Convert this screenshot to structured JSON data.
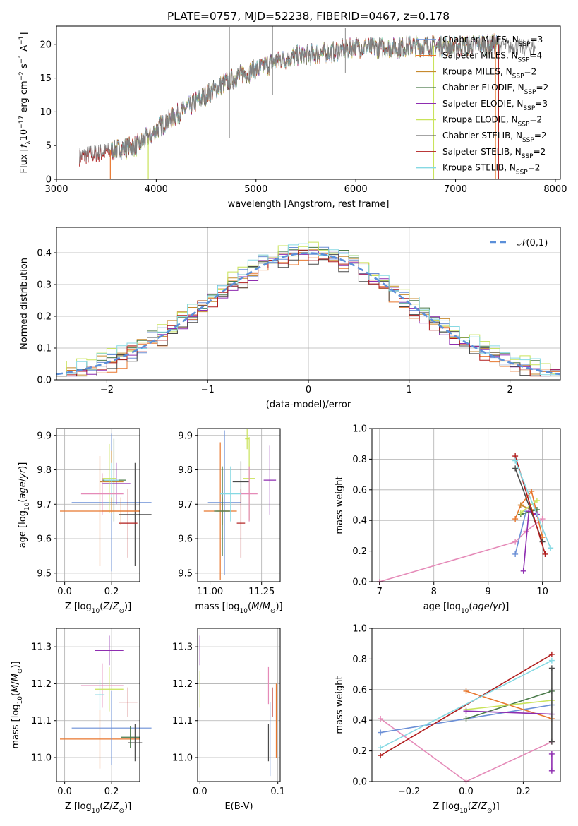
{
  "figure_title": "PLATE=0757, MJD=52238, FIBERID=0467, z=0.178",
  "colors": {
    "Chabrier MILES": "#6b8fd6",
    "Salpeter MILES": "#e8772e",
    "Kroupa MILES": "#c78a2e",
    "Chabrier ELODIE": "#4a7a4a",
    "Salpeter ELODIE": "#8e2db0",
    "Kroupa ELODIE": "#c9e35a",
    "Chabrier STELIB": "#4a4a4a",
    "Salpeter STELIB": "#b01c1c",
    "Kroupa STELIB": "#86d9e3",
    "extra pink": "#e58ab8",
    "gaussian": "#5b8fd9",
    "spectrum": "#808080"
  },
  "chart_data": [
    {
      "id": "spectrum",
      "type": "line",
      "title": "PLATE=0757, MJD=52238, FIBERID=0467, z=0.178",
      "xlabel": "wavelength [Angstrom, rest frame]",
      "ylabel": "Flux [f_λ 10^-17 erg cm^-2 s^-1 A^-1]",
      "xlim": [
        3000,
        8050
      ],
      "ylim": [
        0,
        22.7
      ],
      "xticks": [
        "3000",
        "4000",
        "5000",
        "6000",
        "7000",
        "8000"
      ],
      "yticks": [
        "0",
        "5",
        "10",
        "15",
        "20"
      ],
      "grid": false,
      "legend_position": "right",
      "legend": [
        {
          "name": "Chabrier MILES, N_SSP=3",
          "base": "Chabrier MILES, N",
          "sub": "SSP",
          "tail": "=3",
          "color": "#6b8fd6"
        },
        {
          "name": "Salpeter MILES, N_SSP=4",
          "base": "Salpeter MILES, N",
          "sub": "SSP",
          "tail": "=4",
          "color": "#e8772e"
        },
        {
          "name": "Kroupa MILES, N_SSP=2",
          "base": "Kroupa MILES, N",
          "sub": "SSP",
          "tail": "=2",
          "color": "#c78a2e"
        },
        {
          "name": "Chabrier ELODIE, N_SSP=2",
          "base": "Chabrier ELODIE, N",
          "sub": "SSP",
          "tail": "=2",
          "color": "#4a7a4a"
        },
        {
          "name": "Salpeter ELODIE, N_SSP=3",
          "base": "Salpeter ELODIE, N",
          "sub": "SSP",
          "tail": "=3",
          "color": "#8e2db0"
        },
        {
          "name": "Kroupa ELODIE, N_SSP=2",
          "base": "Kroupa ELODIE, N",
          "sub": "SSP",
          "tail": "=2",
          "color": "#c9e35a"
        },
        {
          "name": "Chabrier STELIB, N_SSP=2",
          "base": "Chabrier STELIB, N",
          "sub": "SSP",
          "tail": "=2",
          "color": "#4a4a4a"
        },
        {
          "name": "Salpeter STELIB, N_SSP=2",
          "base": "Salpeter STELIB, N",
          "sub": "SSP",
          "tail": "=2",
          "color": "#b01c1c"
        },
        {
          "name": "Kroupa STELIB, N_SSP=2",
          "base": "Kroupa STELIB, N",
          "sub": "SSP",
          "tail": "=2",
          "color": "#86d9e3"
        }
      ],
      "continuum": [
        [
          3230,
          3.5
        ],
        [
          3400,
          4.0
        ],
        [
          3600,
          4.4
        ],
        [
          3800,
          5.0
        ],
        [
          3950,
          6.5
        ],
        [
          4050,
          8.0
        ],
        [
          4200,
          9.5
        ],
        [
          4400,
          11.5
        ],
        [
          4600,
          13.5
        ],
        [
          4800,
          15.2
        ],
        [
          5000,
          16.2
        ],
        [
          5200,
          17.5
        ],
        [
          5400,
          18.3
        ],
        [
          5600,
          18.6
        ],
        [
          5800,
          19.0
        ],
        [
          6000,
          19.6
        ],
        [
          6200,
          19.5
        ],
        [
          6400,
          19.5
        ],
        [
          6600,
          19.8
        ],
        [
          6800,
          19.8
        ],
        [
          7000,
          19.6
        ],
        [
          7200,
          19.9
        ],
        [
          7400,
          20.0
        ],
        [
          7600,
          19.6
        ],
        [
          7700,
          19.5
        ],
        [
          7800,
          19.6
        ]
      ],
      "spectrum_start": 3230,
      "spectrum_end": 7800,
      "model_range": [
        3540,
        7430
      ],
      "features": [
        {
          "x": 4734,
          "y_low": 6.1,
          "y_high": 22.6
        },
        {
          "x": 5166,
          "y_low": 12.5,
          "y_high": 22.7
        },
        {
          "x": 5895,
          "y_low": 15.8,
          "y_high": 22.4
        }
      ],
      "dropouts": [
        {
          "x": 3540,
          "color": "#e8772e"
        },
        {
          "x": 3920,
          "color": "#c9e35a"
        },
        {
          "x": 6780,
          "color": "#c9e35a"
        },
        {
          "x": 7400,
          "color": "#e8772e"
        },
        {
          "x": 7430,
          "color": "#b01c1c"
        }
      ]
    },
    {
      "id": "residual-histogram",
      "type": "step",
      "xlabel": "(data-model)/error",
      "ylabel": "Normed distribution",
      "xlim": [
        -2.5,
        2.5
      ],
      "ylim": [
        0,
        0.48
      ],
      "xticks": [
        "−2",
        "−1",
        "0",
        "1",
        "2"
      ],
      "yticks": [
        "0.0",
        "0.1",
        "0.2",
        "0.3",
        "0.4"
      ],
      "grid": true,
      "legend_position": "top-right",
      "legend": [
        {
          "name": "N(0,1)",
          "label": "𝒩(0,1)",
          "color": "#5b8fd9",
          "style": "dashed"
        }
      ],
      "gaussian": {
        "mean": 0,
        "sigma": 1
      },
      "bin_width": 0.1,
      "series": [
        {
          "name": "Chabrier MILES",
          "color": "#6b8fd6",
          "offset": 0.005
        },
        {
          "name": "Salpeter MILES",
          "color": "#e8772e",
          "offset": -0.012
        },
        {
          "name": "Kroupa MILES",
          "color": "#c78a2e",
          "offset": 0.008
        },
        {
          "name": "Chabrier ELODIE",
          "color": "#4a7a4a",
          "offset": 0.01
        },
        {
          "name": "Salpeter ELODIE",
          "color": "#8e2db0",
          "offset": -0.006
        },
        {
          "name": "Kroupa ELODIE",
          "color": "#c9e35a",
          "offset": 0.015
        },
        {
          "name": "Chabrier STELIB",
          "color": "#4a4a4a",
          "offset": -0.01
        },
        {
          "name": "Salpeter STELIB",
          "color": "#b01c1c",
          "offset": -0.004
        },
        {
          "name": "Kroupa STELIB",
          "color": "#86d9e3",
          "offset": 0.012
        }
      ]
    },
    {
      "id": "age-vs-Z",
      "type": "scatter-errorbar",
      "xlabel": "Z [log10(Z/Z⊙)]",
      "ylabel": "age [log10(age/yr)]",
      "xlim": [
        -0.035,
        0.32
      ],
      "ylim": [
        9.475,
        9.92
      ],
      "xticks": [
        "0.0",
        "0.2"
      ],
      "yticks": [
        "9.5",
        "9.6",
        "9.7",
        "9.8",
        "9.9"
      ],
      "grid": true,
      "points": [
        {
          "color": "#e8772e",
          "x": 0.15,
          "xerr": 0.17,
          "y": 9.68,
          "yerr": 0.16
        },
        {
          "color": "#6b8fd6",
          "x": 0.2,
          "xerr": 0.17,
          "y": 9.705,
          "yerr": 0.2
        },
        {
          "color": "#c78a2e",
          "x": 0.2,
          "xerr": 0.05,
          "y": 9.765,
          "yerr": 0.09
        },
        {
          "color": "#4a7a4a",
          "x": 0.21,
          "xerr": 0.05,
          "y": 9.77,
          "yerr": 0.12
        },
        {
          "color": "#8e2db0",
          "x": 0.22,
          "xerr": 0.06,
          "y": 9.76,
          "yerr": 0.06
        },
        {
          "color": "#c9e35a",
          "x": 0.19,
          "xerr": 0.03,
          "y": 9.775,
          "yerr": 0.1
        },
        {
          "color": "#4a4a4a",
          "x": 0.3,
          "xerr": 0.07,
          "y": 9.67,
          "yerr": 0.15
        },
        {
          "color": "#b01c1c",
          "x": 0.27,
          "xerr": 0.04,
          "y": 9.645,
          "yerr": 0.1
        },
        {
          "color": "#86d9e3",
          "x": 0.2,
          "xerr": 0.03,
          "y": 9.77,
          "yerr": 0.05
        },
        {
          "color": "#e58ab8",
          "x": 0.16,
          "xerr": 0.09,
          "y": 9.73,
          "yerr": 0.06
        },
        {
          "color": "#e8772e",
          "x": 0.24,
          "xerr": 0.08,
          "y": 9.68,
          "yerr": 0.04
        }
      ]
    },
    {
      "id": "age-vs-mass",
      "type": "scatter-errorbar",
      "xlabel": "mass [log10(M/M⊙)]",
      "ylabel": "",
      "xlim": [
        10.94,
        11.34
      ],
      "ylim": [
        9.475,
        9.92
      ],
      "xticks": [
        "11.00",
        "11.25"
      ],
      "yticks": [
        "9.5",
        "9.6",
        "9.7",
        "9.8",
        "9.9"
      ],
      "grid": true,
      "points": [
        {
          "color": "#e8772e",
          "x": 11.05,
          "xerr": 0.08,
          "y": 9.68,
          "yerr": 0.2
        },
        {
          "color": "#6b8fd6",
          "x": 11.07,
          "xerr": 0.08,
          "y": 9.705,
          "yerr": 0.21
        },
        {
          "color": "#c78a2e",
          "x": 11.06,
          "xerr": 0.03,
          "y": 9.68,
          "yerr": 0.04
        },
        {
          "color": "#4a7a4a",
          "x": 11.06,
          "xerr": 0.04,
          "y": 9.68,
          "yerr": 0.13
        },
        {
          "color": "#8e2db0",
          "x": 11.29,
          "xerr": 0.03,
          "y": 9.77,
          "yerr": 0.1
        },
        {
          "color": "#c9e35a",
          "x": 11.19,
          "xerr": 0.03,
          "y": 9.775,
          "yerr": 0.12
        },
        {
          "color": "#4a4a4a",
          "x": 11.15,
          "xerr": 0.04,
          "y": 9.765,
          "yerr": 0.06
        },
        {
          "color": "#b01c1c",
          "x": 11.15,
          "xerr": 0.02,
          "y": 9.645,
          "yerr": 0.1
        },
        {
          "color": "#86d9e3",
          "x": 11.1,
          "xerr": 0.05,
          "y": 9.73,
          "yerr": 0.08
        },
        {
          "color": "#e58ab8",
          "x": 11.19,
          "xerr": 0.04,
          "y": 9.73,
          "yerr": 0.08
        },
        {
          "color": "#c9e35a",
          "x": 11.18,
          "xerr": 0.01,
          "y": 9.89,
          "yerr": 0.03
        }
      ]
    },
    {
      "id": "weight-vs-age",
      "type": "line",
      "xlabel": "age [log10(age/yr)]",
      "ylabel": "mass weight",
      "xlim": [
        6.86,
        10.33
      ],
      "ylim": [
        0,
        1.0
      ],
      "xticks": [
        "7",
        "8",
        "9",
        "10"
      ],
      "yticks": [
        "0.0",
        "0.2",
        "0.4",
        "0.6",
        "0.8",
        "1.0"
      ],
      "grid": true,
      "series": [
        {
          "color": "#e58ab8",
          "x": [
            7.0,
            9.5,
            9.7,
            10.0
          ],
          "y": [
            0.0,
            0.26,
            0.33,
            0.41
          ]
        },
        {
          "color": "#6b8fd6",
          "x": [
            9.5,
            9.7
          ],
          "y": [
            0.18,
            0.46
          ]
        },
        {
          "color": "#e8772e",
          "x": [
            9.5,
            9.6,
            9.8,
            10.0
          ],
          "y": [
            0.41,
            0.5,
            0.59,
            0.29
          ]
        },
        {
          "color": "#c78a2e",
          "x": [
            9.6,
            9.8
          ],
          "y": [
            0.5,
            0.47
          ]
        },
        {
          "color": "#4a7a4a",
          "x": [
            9.6,
            9.9
          ],
          "y": [
            0.44,
            0.47
          ]
        },
        {
          "color": "#8e2db0",
          "x": [
            9.65,
            9.75,
            9.9
          ],
          "y": [
            0.07,
            0.46,
            0.44
          ]
        },
        {
          "color": "#c9e35a",
          "x": [
            9.6,
            9.9
          ],
          "y": [
            0.45,
            0.53
          ]
        },
        {
          "color": "#4a4a4a",
          "x": [
            9.5,
            10.0
          ],
          "y": [
            0.74,
            0.26
          ]
        },
        {
          "color": "#b01c1c",
          "x": [
            9.5,
            10.05
          ],
          "y": [
            0.82,
            0.18
          ]
        },
        {
          "color": "#86d9e3",
          "x": [
            9.5,
            10.15
          ],
          "y": [
            0.79,
            0.22
          ]
        }
      ]
    },
    {
      "id": "mass-vs-Z",
      "type": "scatter-errorbar",
      "xlabel": "Z [log10(Z/Z⊙)]",
      "ylabel": "mass [log10(M/M⊙)]",
      "xlim": [
        -0.035,
        0.32
      ],
      "ylim": [
        10.935,
        11.35
      ],
      "xticks": [
        "0.0",
        "0.2"
      ],
      "yticks": [
        "11.0",
        "11.1",
        "11.2",
        "11.3"
      ],
      "grid": true,
      "points": [
        {
          "color": "#e8772e",
          "x": 0.15,
          "xerr": 0.17,
          "y": 11.05,
          "yerr": 0.08
        },
        {
          "color": "#6b8fd6",
          "x": 0.2,
          "xerr": 0.17,
          "y": 11.08,
          "yerr": 0.1
        },
        {
          "color": "#4a7a4a",
          "x": 0.28,
          "xerr": 0.04,
          "y": 11.055,
          "yerr": 0.03
        },
        {
          "color": "#4a4a4a",
          "x": 0.3,
          "xerr": 0.03,
          "y": 11.04,
          "yerr": 0.05
        },
        {
          "color": "#b01c1c",
          "x": 0.27,
          "xerr": 0.04,
          "y": 11.15,
          "yerr": 0.04
        },
        {
          "color": "#8e2db0",
          "x": 0.19,
          "xerr": 0.06,
          "y": 11.29,
          "yerr": 0.04
        },
        {
          "color": "#e58ab8",
          "x": 0.16,
          "xerr": 0.09,
          "y": 11.195,
          "yerr": 0.06
        },
        {
          "color": "#c9e35a",
          "x": 0.19,
          "xerr": 0.06,
          "y": 11.185,
          "yerr": 0.06
        },
        {
          "color": "#86d9e3",
          "x": 0.15,
          "xerr": 0.02,
          "y": 11.17,
          "yerr": 0.04
        }
      ]
    },
    {
      "id": "mass-vs-ebv",
      "type": "scatter-errorbar",
      "xlabel": "E(B-V)",
      "ylabel": "",
      "xlim": [
        -0.003,
        0.103
      ],
      "ylim": [
        10.935,
        11.35
      ],
      "xticks": [
        "0.0",
        "0.1"
      ],
      "yticks": [
        "11.0",
        "11.1",
        "11.2",
        "11.3"
      ],
      "grid": true,
      "points": [
        {
          "color": "#8e2db0",
          "x": 0.0,
          "xerr": 0,
          "y": 11.29,
          "yerr": 0.04
        },
        {
          "color": "#c9e35a",
          "x": 0.0,
          "xerr": 0,
          "y": 11.185,
          "yerr": 0.05
        },
        {
          "color": "#e58ab8",
          "x": 0.088,
          "xerr": 0,
          "y": 11.195,
          "yerr": 0.05
        },
        {
          "color": "#4a4a4a",
          "x": 0.088,
          "xerr": 0,
          "y": 11.04,
          "yerr": 0.05
        },
        {
          "color": "#6b8fd6",
          "x": 0.09,
          "xerr": 0,
          "y": 11.05,
          "yerr": 0.1
        },
        {
          "color": "#b01c1c",
          "x": 0.093,
          "xerr": 0,
          "y": 11.15,
          "yerr": 0.04
        },
        {
          "color": "#e8772e",
          "x": 0.098,
          "xerr": 0,
          "y": 11.1,
          "yerr": 0.1
        }
      ]
    },
    {
      "id": "weight-vs-Z",
      "type": "line",
      "xlabel": "Z [log10(Z/Z⊙)]",
      "ylabel": "mass weight",
      "xlim": [
        -0.33,
        0.33
      ],
      "ylim": [
        0,
        1.0
      ],
      "xticks": [
        "−0.2",
        "0.0",
        "0.2"
      ],
      "yticks": [
        "0.0",
        "0.2",
        "0.4",
        "0.6",
        "0.8",
        "1.0"
      ],
      "grid": true,
      "series": [
        {
          "color": "#e58ab8",
          "x": [
            -0.3,
            0.0,
            0.3
          ],
          "y": [
            0.41,
            0.0,
            0.26
          ]
        },
        {
          "color": "#6b8fd6",
          "x": [
            -0.3,
            0.3
          ],
          "y": [
            0.32,
            0.5
          ]
        },
        {
          "color": "#e8772e",
          "x": [
            0.0,
            0.3
          ],
          "y": [
            0.59,
            0.41
          ]
        },
        {
          "color": "#4a7a4a",
          "x": [
            0.0,
            0.3
          ],
          "y": [
            0.41,
            0.59
          ]
        },
        {
          "color": "#c9e35a",
          "x": [
            0.0,
            0.3
          ],
          "y": [
            0.47,
            0.53
          ]
        },
        {
          "color": "#8e2db0",
          "x": [
            0.0,
            0.3
          ],
          "y": [
            0.46,
            0.44
          ]
        },
        {
          "color": "#b01c1c",
          "x": [
            -0.3,
            0.3
          ],
          "y": [
            0.17,
            0.83
          ]
        },
        {
          "color": "#86d9e3",
          "x": [
            -0.3,
            0.3
          ],
          "y": [
            0.22,
            0.79
          ]
        },
        {
          "color": "#4a4a4a",
          "x": [
            0.3,
            0.3
          ],
          "y": [
            0.26,
            0.74
          ]
        },
        {
          "color": "#8e2db0",
          "x": [
            0.3,
            0.3
          ],
          "y": [
            0.07,
            0.18
          ]
        }
      ]
    }
  ]
}
